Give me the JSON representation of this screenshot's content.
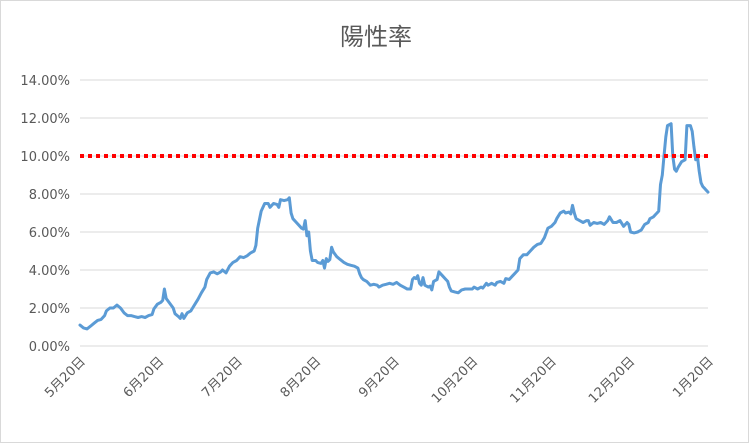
{
  "chart_data": {
    "type": "line",
    "title": "陽性率",
    "xlabel": "",
    "ylabel": "",
    "ylim": [
      0,
      14
    ],
    "y_ticks": [
      "0.00%",
      "2.00%",
      "4.00%",
      "6.00%",
      "8.00%",
      "10.00%",
      "12.00%",
      "14.00%"
    ],
    "x_ticks": [
      "5月20日",
      "6月20日",
      "7月20日",
      "8月20日",
      "9月20日",
      "10月20日",
      "11月20日",
      "12月20日",
      "1月20日"
    ],
    "grid": true,
    "legend": "none",
    "series": [
      {
        "color": "#5b9bd5",
        "unit": "%",
        "x_days_note": "",
        "points": [
          [
            0,
            1.1
          ],
          [
            2,
            0.95
          ],
          [
            4,
            0.9
          ],
          [
            6,
            1.05
          ],
          [
            8,
            1.2
          ],
          [
            10,
            1.35
          ],
          [
            12,
            1.4
          ],
          [
            14,
            1.6
          ],
          [
            15,
            1.85
          ],
          [
            17,
            2.0
          ],
          [
            19,
            2.0
          ],
          [
            21,
            2.15
          ],
          [
            23,
            2.0
          ],
          [
            25,
            1.75
          ],
          [
            27,
            1.6
          ],
          [
            29,
            1.6
          ],
          [
            31,
            1.55
          ],
          [
            33,
            1.5
          ],
          [
            35,
            1.55
          ],
          [
            37,
            1.5
          ],
          [
            39,
            1.6
          ],
          [
            41,
            1.65
          ],
          [
            42,
            1.95
          ],
          [
            44,
            2.2
          ],
          [
            46,
            2.3
          ],
          [
            47,
            2.4
          ],
          [
            48,
            3.0
          ],
          [
            49,
            2.5
          ],
          [
            51,
            2.25
          ],
          [
            53,
            2.0
          ],
          [
            54,
            1.7
          ],
          [
            56,
            1.55
          ],
          [
            57,
            1.45
          ],
          [
            58,
            1.7
          ],
          [
            59,
            1.45
          ],
          [
            61,
            1.75
          ],
          [
            63,
            1.85
          ],
          [
            64,
            2.0
          ],
          [
            66,
            2.3
          ],
          [
            67,
            2.45
          ],
          [
            69,
            2.8
          ],
          [
            71,
            3.1
          ],
          [
            72,
            3.5
          ],
          [
            74,
            3.85
          ],
          [
            76,
            3.9
          ],
          [
            78,
            3.8
          ],
          [
            80,
            3.9
          ],
          [
            81,
            4.0
          ],
          [
            83,
            3.85
          ],
          [
            85,
            4.2
          ],
          [
            87,
            4.4
          ],
          [
            89,
            4.5
          ],
          [
            91,
            4.7
          ],
          [
            93,
            4.65
          ],
          [
            95,
            4.75
          ],
          [
            97,
            4.9
          ],
          [
            99,
            5.0
          ],
          [
            100,
            5.3
          ],
          [
            101,
            6.2
          ],
          [
            103,
            7.1
          ],
          [
            105,
            7.5
          ],
          [
            107,
            7.5
          ],
          [
            108,
            7.3
          ],
          [
            110,
            7.5
          ],
          [
            112,
            7.45
          ],
          [
            113,
            7.3
          ],
          [
            114,
            7.7
          ],
          [
            116,
            7.65
          ],
          [
            118,
            7.7
          ],
          [
            119,
            7.8
          ],
          [
            120,
            7.0
          ],
          [
            121,
            6.7
          ],
          [
            123,
            6.5
          ],
          [
            125,
            6.3
          ],
          [
            126,
            6.2
          ],
          [
            127,
            6.15
          ],
          [
            128,
            6.6
          ],
          [
            129,
            5.8
          ],
          [
            130,
            6.0
          ],
          [
            131,
            5.0
          ],
          [
            132,
            4.5
          ],
          [
            134,
            4.5
          ],
          [
            135,
            4.4
          ],
          [
            137,
            4.35
          ],
          [
            138,
            4.5
          ],
          [
            139,
            4.1
          ],
          [
            140,
            4.6
          ],
          [
            141,
            4.45
          ],
          [
            142,
            4.55
          ],
          [
            143,
            5.2
          ],
          [
            144,
            4.95
          ],
          [
            146,
            4.7
          ],
          [
            148,
            4.55
          ],
          [
            150,
            4.4
          ],
          [
            152,
            4.3
          ],
          [
            154,
            4.25
          ],
          [
            156,
            4.2
          ],
          [
            158,
            4.1
          ],
          [
            159,
            3.8
          ],
          [
            160,
            3.6
          ],
          [
            161,
            3.5
          ],
          [
            163,
            3.4
          ],
          [
            165,
            3.2
          ],
          [
            167,
            3.25
          ],
          [
            169,
            3.2
          ],
          [
            170,
            3.1
          ],
          [
            172,
            3.2
          ],
          [
            174,
            3.25
          ],
          [
            176,
            3.3
          ],
          [
            178,
            3.25
          ],
          [
            180,
            3.35
          ],
          [
            182,
            3.2
          ],
          [
            184,
            3.1
          ],
          [
            186,
            3.0
          ],
          [
            188,
            3.0
          ],
          [
            189,
            3.5
          ],
          [
            190,
            3.6
          ],
          [
            191,
            3.55
          ],
          [
            192,
            3.7
          ],
          [
            193,
            3.3
          ],
          [
            194,
            3.2
          ],
          [
            195,
            3.6
          ],
          [
            196,
            3.2
          ],
          [
            198,
            3.1
          ],
          [
            199,
            3.15
          ],
          [
            200,
            2.95
          ],
          [
            201,
            3.4
          ],
          [
            203,
            3.5
          ],
          [
            204,
            3.9
          ],
          [
            206,
            3.7
          ],
          [
            208,
            3.5
          ],
          [
            209,
            3.4
          ],
          [
            210,
            3.1
          ],
          [
            211,
            2.9
          ],
          [
            213,
            2.85
          ],
          [
            215,
            2.8
          ],
          [
            217,
            2.95
          ],
          [
            219,
            3.0
          ],
          [
            221,
            3.0
          ],
          [
            223,
            3.0
          ],
          [
            224,
            3.1
          ],
          [
            226,
            3.0
          ],
          [
            228,
            3.1
          ],
          [
            229,
            3.05
          ],
          [
            231,
            3.3
          ],
          [
            232,
            3.2
          ],
          [
            234,
            3.3
          ],
          [
            236,
            3.2
          ],
          [
            237,
            3.35
          ],
          [
            239,
            3.4
          ],
          [
            241,
            3.3
          ],
          [
            242,
            3.55
          ],
          [
            244,
            3.5
          ],
          [
            246,
            3.7
          ],
          [
            247,
            3.8
          ],
          [
            249,
            4.0
          ],
          [
            250,
            4.6
          ],
          [
            252,
            4.8
          ],
          [
            254,
            4.8
          ],
          [
            256,
            5.0
          ],
          [
            258,
            5.2
          ],
          [
            260,
            5.35
          ],
          [
            262,
            5.4
          ],
          [
            264,
            5.7
          ],
          [
            266,
            6.2
          ],
          [
            268,
            6.3
          ],
          [
            270,
            6.5
          ],
          [
            271,
            6.7
          ],
          [
            273,
            7.0
          ],
          [
            275,
            7.1
          ],
          [
            276,
            7.0
          ],
          [
            278,
            7.05
          ],
          [
            279,
            6.95
          ],
          [
            280,
            7.4
          ],
          [
            281,
            7.0
          ],
          [
            282,
            6.7
          ],
          [
            284,
            6.6
          ],
          [
            286,
            6.5
          ],
          [
            288,
            6.6
          ],
          [
            289,
            6.6
          ],
          [
            290,
            6.35
          ],
          [
            292,
            6.5
          ],
          [
            294,
            6.45
          ],
          [
            296,
            6.5
          ],
          [
            298,
            6.4
          ],
          [
            300,
            6.6
          ],
          [
            301,
            6.8
          ],
          [
            303,
            6.5
          ],
          [
            305,
            6.5
          ],
          [
            307,
            6.6
          ],
          [
            309,
            6.3
          ],
          [
            311,
            6.5
          ],
          [
            312,
            6.4
          ],
          [
            313,
            6.0
          ],
          [
            315,
            5.95
          ],
          [
            317,
            6.0
          ],
          [
            319,
            6.1
          ],
          [
            321,
            6.4
          ],
          [
            323,
            6.5
          ],
          [
            324,
            6.7
          ],
          [
            326,
            6.8
          ],
          [
            327,
            6.9
          ],
          [
            328,
            7.0
          ],
          [
            329,
            7.1
          ],
          [
            330,
            8.5
          ],
          [
            331,
            9.0
          ],
          [
            332,
            10.0
          ],
          [
            333,
            11.0
          ],
          [
            334,
            11.6
          ],
          [
            336,
            11.7
          ],
          [
            337,
            10.0
          ],
          [
            338,
            9.3
          ],
          [
            339,
            9.2
          ],
          [
            340,
            9.4
          ],
          [
            342,
            9.7
          ],
          [
            344,
            9.8
          ],
          [
            345,
            11.6
          ],
          [
            347,
            11.6
          ],
          [
            348,
            11.3
          ],
          [
            349,
            10.5
          ],
          [
            350,
            9.8
          ],
          [
            351,
            10.0
          ],
          [
            352,
            9.2
          ],
          [
            353,
            8.6
          ],
          [
            354,
            8.4
          ],
          [
            355,
            8.3
          ],
          [
            356,
            8.2
          ],
          [
            357,
            8.1
          ]
        ]
      },
      {
        "color": "#ff0000",
        "style": "dotted",
        "constant": 10
      }
    ]
  }
}
